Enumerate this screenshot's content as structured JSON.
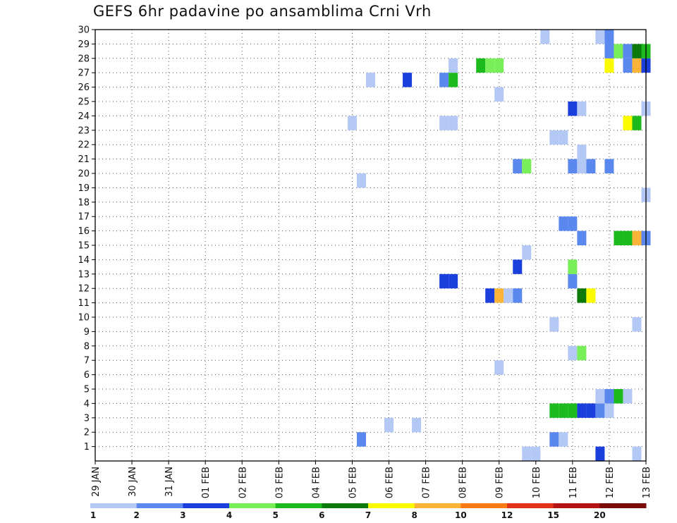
{
  "chart_data": {
    "type": "heatmap",
    "title": "GEFS 6hr padavine po ansamblima Crni Vrh",
    "x_ticks": [
      "29 JAN",
      "30 JAN",
      "31 JAN",
      "01 FEB",
      "02 FEB",
      "03 FEB",
      "04 FEB",
      "05 FEB",
      "06 FEB",
      "07 FEB",
      "08 FEB",
      "09 FEB",
      "10 FEB",
      "11 FEB",
      "12 FEB",
      "13 FEB"
    ],
    "y_ticks": [
      "1",
      "2",
      "3",
      "4",
      "5",
      "6",
      "7",
      "8",
      "9",
      "10",
      "11",
      "12",
      "13",
      "14",
      "15",
      "16",
      "17",
      "18",
      "19",
      "20",
      "21",
      "22",
      "23",
      "24",
      "25",
      "26",
      "27",
      "28",
      "29",
      "30"
    ],
    "xlim_days": [
      0,
      15
    ],
    "ylim": [
      0,
      30
    ],
    "grid": true,
    "colorbar": {
      "labels": [
        "1",
        "2",
        "3",
        "4",
        "5",
        "6",
        "7",
        "8",
        "10",
        "12",
        "15",
        "20"
      ],
      "colors": [
        "#b4c8f5",
        "#5a88ee",
        "#1a3fdc",
        "#78ee58",
        "#1cba1c",
        "#0b7a0b",
        "#fbfb00",
        "#fbb437",
        "#fb7a14",
        "#e23219",
        "#b41414",
        "#7a0b0b"
      ]
    },
    "cells": [
      {
        "d": 11.75,
        "m": 0,
        "c": 0
      },
      {
        "d": 12.0,
        "m": 0,
        "c": 0
      },
      {
        "d": 13.75,
        "m": 0,
        "c": 2
      },
      {
        "d": 14.75,
        "m": 0,
        "c": 0
      },
      {
        "d": 7.25,
        "m": 1,
        "c": 1
      },
      {
        "d": 12.5,
        "m": 1,
        "c": 1
      },
      {
        "d": 12.75,
        "m": 1,
        "c": 0
      },
      {
        "d": 8.0,
        "m": 2,
        "c": 0
      },
      {
        "d": 8.75,
        "m": 2,
        "c": 0
      },
      {
        "d": 12.5,
        "m": 3,
        "c": 4
      },
      {
        "d": 12.75,
        "m": 3,
        "c": 4
      },
      {
        "d": 13.0,
        "m": 3,
        "c": 4
      },
      {
        "d": 13.25,
        "m": 3,
        "c": 2
      },
      {
        "d": 13.5,
        "m": 3,
        "c": 2
      },
      {
        "d": 13.75,
        "m": 3,
        "c": 1
      },
      {
        "d": 14.0,
        "m": 3,
        "c": 0
      },
      {
        "d": 13.75,
        "m": 4,
        "c": 0
      },
      {
        "d": 14.0,
        "m": 4,
        "c": 1
      },
      {
        "d": 14.25,
        "m": 4,
        "c": 4
      },
      {
        "d": 14.5,
        "m": 4,
        "c": 0
      },
      {
        "d": 11.0,
        "m": 6,
        "c": 0
      },
      {
        "d": 13.0,
        "m": 7,
        "c": 0
      },
      {
        "d": 13.25,
        "m": 7,
        "c": 3
      },
      {
        "d": 12.5,
        "m": 9,
        "c": 0
      },
      {
        "d": 14.75,
        "m": 9,
        "c": 0
      },
      {
        "d": 10.75,
        "m": 11,
        "c": 2
      },
      {
        "d": 11.0,
        "m": 11,
        "c": 7
      },
      {
        "d": 11.25,
        "m": 11,
        "c": 0
      },
      {
        "d": 11.5,
        "m": 11,
        "c": 1
      },
      {
        "d": 13.25,
        "m": 11,
        "c": 5
      },
      {
        "d": 13.5,
        "m": 11,
        "c": 6
      },
      {
        "d": 9.5,
        "m": 12,
        "c": 2
      },
      {
        "d": 9.75,
        "m": 12,
        "c": 2
      },
      {
        "d": 13.0,
        "m": 12,
        "c": 1
      },
      {
        "d": 11.5,
        "m": 13,
        "c": 2
      },
      {
        "d": 13.0,
        "m": 13,
        "c": 3
      },
      {
        "d": 11.75,
        "m": 14,
        "c": 0
      },
      {
        "d": 13.25,
        "m": 15,
        "c": 1
      },
      {
        "d": 14.25,
        "m": 15,
        "c": 4
      },
      {
        "d": 14.5,
        "m": 15,
        "c": 4
      },
      {
        "d": 14.75,
        "m": 15,
        "c": 7
      },
      {
        "d": 15.0,
        "m": 15,
        "c": 1
      },
      {
        "d": 12.75,
        "m": 16,
        "c": 1
      },
      {
        "d": 13.0,
        "m": 16,
        "c": 1
      },
      {
        "d": 15.0,
        "m": 18,
        "c": 0
      },
      {
        "d": 7.25,
        "m": 19,
        "c": 0
      },
      {
        "d": 11.5,
        "m": 20,
        "c": 1
      },
      {
        "d": 11.75,
        "m": 20,
        "c": 3
      },
      {
        "d": 13.0,
        "m": 20,
        "c": 1
      },
      {
        "d": 13.25,
        "m": 20,
        "c": 0
      },
      {
        "d": 13.5,
        "m": 20,
        "c": 1
      },
      {
        "d": 14.0,
        "m": 20,
        "c": 1
      },
      {
        "d": 13.25,
        "m": 21,
        "c": 0
      },
      {
        "d": 12.5,
        "m": 22,
        "c": 0
      },
      {
        "d": 12.75,
        "m": 22,
        "c": 0
      },
      {
        "d": 7.0,
        "m": 23,
        "c": 0
      },
      {
        "d": 9.5,
        "m": 23,
        "c": 0
      },
      {
        "d": 9.75,
        "m": 23,
        "c": 0
      },
      {
        "d": 14.5,
        "m": 23,
        "c": 6
      },
      {
        "d": 14.75,
        "m": 23,
        "c": 4
      },
      {
        "d": 13.0,
        "m": 24,
        "c": 2
      },
      {
        "d": 13.25,
        "m": 24,
        "c": 0
      },
      {
        "d": 15.0,
        "m": 24,
        "c": 0
      },
      {
        "d": 11.0,
        "m": 25,
        "c": 0
      },
      {
        "d": 7.5,
        "m": 26,
        "c": 0
      },
      {
        "d": 8.5,
        "m": 26,
        "c": 2
      },
      {
        "d": 9.5,
        "m": 26,
        "c": 1
      },
      {
        "d": 9.75,
        "m": 26,
        "c": 4
      },
      {
        "d": 9.75,
        "m": 27,
        "c": 0
      },
      {
        "d": 10.5,
        "m": 27,
        "c": 4
      },
      {
        "d": 10.75,
        "m": 27,
        "c": 3
      },
      {
        "d": 11.0,
        "m": 27,
        "c": 3
      },
      {
        "d": 14.0,
        "m": 27,
        "c": 6
      },
      {
        "d": 14.5,
        "m": 27,
        "c": 1
      },
      {
        "d": 14.75,
        "m": 27,
        "c": 7
      },
      {
        "d": 15.0,
        "m": 27,
        "c": 2
      },
      {
        "d": 14.0,
        "m": 28,
        "c": 1
      },
      {
        "d": 14.25,
        "m": 28,
        "c": 3
      },
      {
        "d": 14.5,
        "m": 28,
        "c": 1
      },
      {
        "d": 14.75,
        "m": 28,
        "c": 5
      },
      {
        "d": 15.0,
        "m": 28,
        "c": 4
      },
      {
        "d": 12.25,
        "m": 29,
        "c": 0
      },
      {
        "d": 13.75,
        "m": 29,
        "c": 0
      },
      {
        "d": 14.0,
        "m": 29,
        "c": 1
      }
    ]
  }
}
